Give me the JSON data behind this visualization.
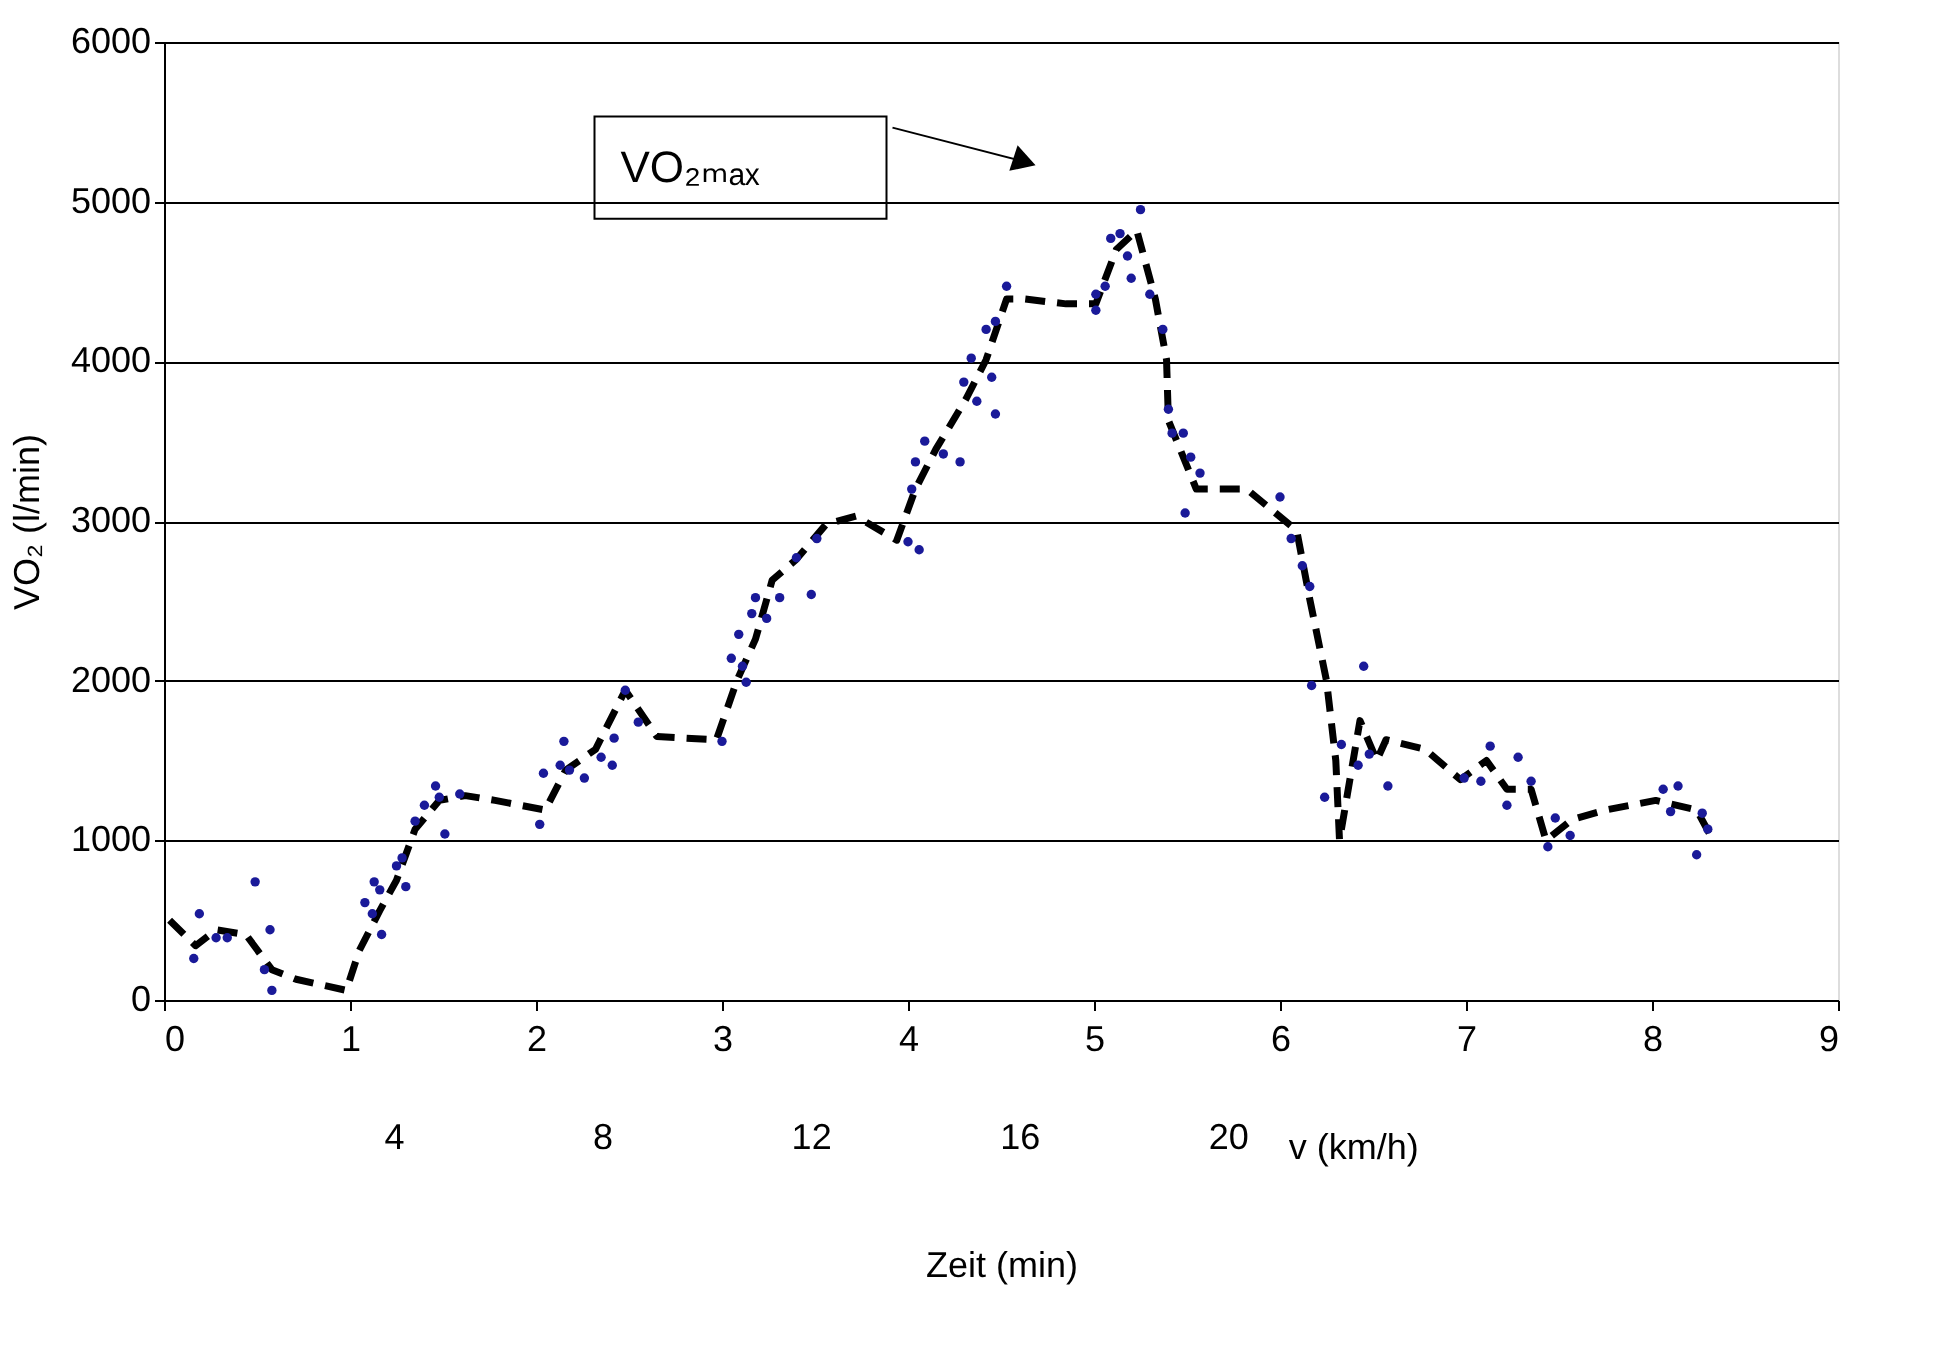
{
  "chart_data": {
    "type": "scatter",
    "xlabel": "Zeit (min)",
    "ylabel": "VO₂ (l/min)",
    "xlim": [
      0,
      9
    ],
    "xticks": [
      0,
      1,
      2,
      3,
      4,
      5,
      6,
      7,
      8,
      9
    ],
    "ylim": [
      0,
      6000
    ],
    "yticks": [
      0,
      1000,
      2000,
      3000,
      4000,
      5000,
      6000
    ],
    "x2lim": [
      -0.4,
      31.7
    ],
    "x2ticks": [
      4,
      8,
      12,
      16,
      20
    ],
    "x2label": "v (km/h)",
    "grid": "y",
    "annotations": [
      "VO₂ₘₐₓ"
    ],
    "series": [
      {
        "type": "line",
        "color": "#000000",
        "line_style": "dashed",
        "marker": "none",
        "x": [
          0.03,
          0.17,
          0.28,
          0.44,
          0.58,
          0.71,
          0.98,
          1.05,
          1.16,
          1.25,
          1.35,
          1.48,
          1.62,
          1.78,
          2.05,
          2.16,
          2.32,
          2.48,
          2.65,
          2.97,
          3.08,
          3.18,
          3.27,
          3.4,
          3.56,
          3.72,
          3.94,
          4.04,
          4.15,
          4.31,
          4.42,
          4.53,
          4.63,
          4.85,
          5.01,
          5.12,
          5.23,
          5.33,
          5.39,
          5.4,
          5.55,
          5.82,
          6.09,
          6.16,
          6.25,
          6.3,
          6.32,
          6.43,
          6.52,
          6.57,
          6.78,
          6.97,
          7.11,
          7.22,
          7.35,
          7.43,
          7.57,
          7.75,
          8.02,
          8.24,
          8.31
        ],
        "values": [
          500,
          340,
          440,
          410,
          190,
          130,
          60,
          310,
          560,
          750,
          1070,
          1250,
          1280,
          1250,
          1190,
          1440,
          1570,
          1940,
          1650,
          1630,
          2000,
          2260,
          2630,
          2760,
          2980,
          3030,
          2880,
          3200,
          3450,
          3760,
          4010,
          4390,
          4390,
          4360,
          4360,
          4700,
          4820,
          4390,
          4010,
          3630,
          3200,
          3200,
          2940,
          2510,
          2000,
          1500,
          1000,
          1750,
          1500,
          1630,
          1570,
          1380,
          1500,
          1320,
          1320,
          1000,
          1130,
          1190,
          1250,
          1190,
          1040
        ]
      },
      {
        "color": "#1a1a99",
        "marker": "circle",
        "x": [
          0.16,
          0.19,
          0.28,
          0.34,
          0.49,
          0.57,
          0.54,
          0.58,
          1.08,
          1.12,
          1.17,
          1.16,
          1.13,
          1.3,
          1.25,
          1.28,
          1.35,
          1.4,
          1.46,
          1.48,
          1.51,
          1.59,
          2.02,
          2.04,
          2.13,
          2.18,
          2.26,
          2.15,
          2.35,
          2.41,
          2.42,
          2.55,
          2.48,
          3.0,
          3.05,
          3.11,
          3.13,
          3.09,
          3.16,
          3.18,
          3.24,
          3.31,
          3.4,
          3.51,
          3.48,
          4.0,
          4.06,
          4.02,
          4.04,
          4.09,
          4.19,
          4.28,
          4.37,
          4.47,
          4.3,
          4.34,
          4.42,
          4.47,
          4.53,
          4.45,
          5.01,
          5.01,
          5.06,
          5.09,
          5.14,
          5.18,
          5.2,
          5.25,
          5.3,
          5.37,
          5.4,
          5.42,
          5.48,
          5.52,
          5.57,
          5.49,
          6.0,
          6.06,
          6.12,
          6.16,
          6.17,
          6.24,
          6.33,
          6.42,
          6.45,
          6.48,
          6.58,
          6.99,
          7.08,
          7.13,
          7.22,
          7.28,
          7.35,
          7.48,
          7.56,
          7.44,
          8.06,
          8.14,
          8.1,
          8.27,
          8.3,
          8.24
        ],
        "values": [
          260,
          540,
          390,
          390,
          740,
          440,
          190,
          60,
          610,
          540,
          410,
          690,
          740,
          710,
          840,
          890,
          1120,
          1220,
          1340,
          1270,
          1040,
          1290,
          1100,
          1420,
          1470,
          1440,
          1390,
          1620,
          1520,
          1470,
          1640,
          1740,
          1940,
          1620,
          2140,
          2090,
          1990,
          2290,
          2420,
          2520,
          2390,
          2520,
          2770,
          2890,
          2540,
          2870,
          2820,
          3200,
          3370,
          3500,
          3420,
          3370,
          3750,
          3670,
          3870,
          4020,
          4200,
          4250,
          4470,
          3900,
          4320,
          4420,
          4470,
          4770,
          4800,
          4660,
          4520,
          4950,
          4420,
          4200,
          3700,
          3550,
          3550,
          3400,
          3300,
          3050,
          3150,
          2890,
          2720,
          2590,
          1970,
          1270,
          1600,
          1470,
          2090,
          1540,
          1340,
          1390,
          1370,
          1590,
          1220,
          1520,
          1370,
          1140,
          1030,
          960,
          1320,
          1340,
          1180,
          1170,
          1070,
          910
        ]
      }
    ]
  }
}
